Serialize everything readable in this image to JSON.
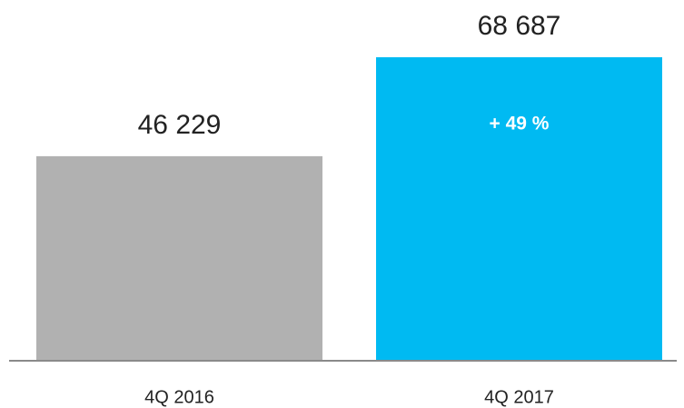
{
  "chart_data": {
    "type": "bar",
    "categories": [
      "4Q 2016",
      "4Q 2017"
    ],
    "values": [
      46229,
      68687
    ],
    "value_labels": [
      "46 229",
      "68 687"
    ],
    "colors": [
      "#b1b1b1",
      "#00baf2"
    ],
    "annotation": "+ 49 %"
  }
}
